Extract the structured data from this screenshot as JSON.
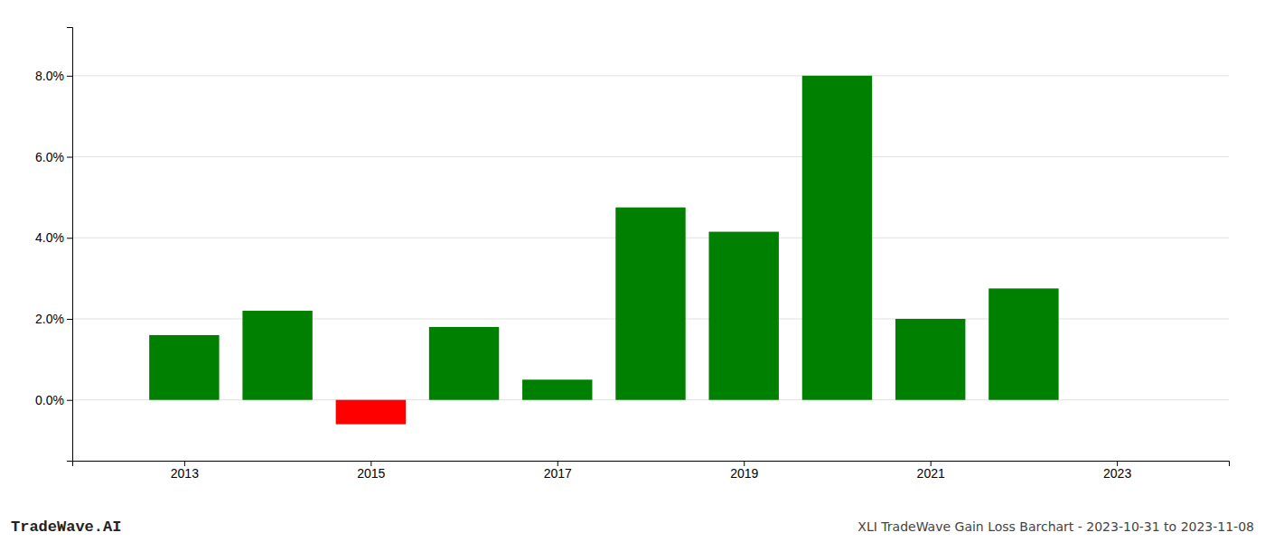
{
  "chart_data": {
    "type": "bar",
    "title": "XLI TradeWave Gain Loss Barchart - 2023-10-31 to 2023-11-08",
    "annotations": [
      "TradeWave.AI"
    ],
    "x": [
      2013,
      2014,
      2015,
      2016,
      2017,
      2018,
      2019,
      2020,
      2021,
      2022
    ],
    "values": [
      0.016,
      0.022,
      -0.006,
      0.018,
      0.005,
      0.0475,
      0.0415,
      0.08,
      0.02,
      0.0275
    ],
    "colors": [
      "#008000",
      "#008000",
      "#ff0000",
      "#008000",
      "#008000",
      "#008000",
      "#008000",
      "#008000",
      "#008000",
      "#008000"
    ],
    "xlim": [
      2011.8,
      2024.2
    ],
    "xticks": [
      2013,
      2015,
      2017,
      2019,
      2021,
      2023
    ],
    "ylim": [
      -0.015,
      0.092
    ],
    "yticks": [
      {
        "value": 0.0,
        "label": "0.0%"
      },
      {
        "value": 0.02,
        "label": "2.0%"
      },
      {
        "value": 0.04,
        "label": "4.0%"
      },
      {
        "value": 0.06,
        "label": "6.0%"
      },
      {
        "value": 0.08,
        "label": "8.0%"
      }
    ],
    "grid": true
  }
}
